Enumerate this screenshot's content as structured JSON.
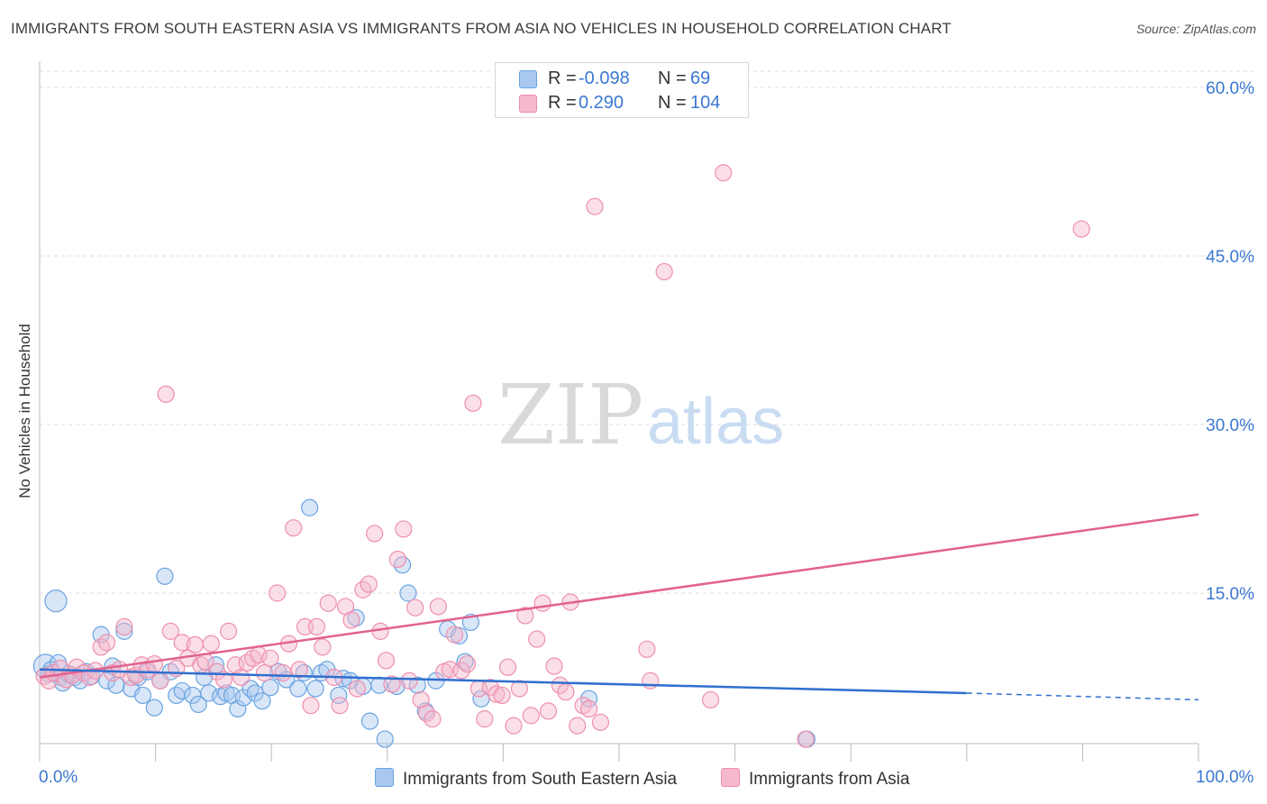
{
  "title": "IMMIGRANTS FROM SOUTH EASTERN ASIA VS IMMIGRANTS FROM ASIA NO VEHICLES IN HOUSEHOLD CORRELATION CHART",
  "source": "Source: ZipAtlas.com",
  "watermark": {
    "zip": "ZIP",
    "atlas": "atlas"
  },
  "legend": {
    "rows": [
      {
        "r_label": "R =",
        "r_value": "-0.098",
        "n_label": "N =",
        "n_value": "69",
        "color": "#a8c8f0"
      },
      {
        "r_label": "R =",
        "r_value": "0.290",
        "n_label": "N =",
        "n_value": "104",
        "color": "#f5b8cc"
      }
    ]
  },
  "bottom_legend": [
    {
      "label": "Immigrants from South Eastern Asia",
      "color": "#a8c8f0"
    },
    {
      "label": "Immigrants from Asia",
      "color": "#f5b8cc"
    }
  ],
  "chart_data": {
    "type": "scatter",
    "title": "IMMIGRANTS FROM SOUTH EASTERN ASIA VS IMMIGRANTS FROM ASIA NO VEHICLES IN HOUSEHOLD CORRELATION CHART",
    "xlabel": "",
    "ylabel": "No Vehicles in Household",
    "xlim": [
      0,
      100
    ],
    "ylim": [
      0,
      63
    ],
    "x_tick_labels": [
      "0.0%",
      "100.0%"
    ],
    "y_ticks": [
      15,
      30,
      45,
      60
    ],
    "y_tick_labels": [
      "15.0%",
      "30.0%",
      "45.0%",
      "60.0%"
    ],
    "grid": true,
    "colors": {
      "series1": "#6aa3e0",
      "series1_line": "#2f6fcf",
      "series2": "#ee8fad",
      "series2_line": "#e2628f",
      "accent_text": "#3a78d1"
    },
    "series": [
      {
        "name": "Immigrants from South Eastern Asia",
        "points": [
          [
            0.5,
            8.5
          ],
          [
            0.8,
            7.8
          ],
          [
            1.0,
            8.2
          ],
          [
            1.4,
            14.3
          ],
          [
            1.6,
            8.8
          ],
          [
            1.8,
            7.5
          ],
          [
            2.0,
            7.0
          ],
          [
            2.5,
            7.8
          ],
          [
            3.0,
            7.5
          ],
          [
            3.5,
            7.2
          ],
          [
            4.0,
            8.0
          ],
          [
            4.5,
            7.6
          ],
          [
            5.3,
            11.3
          ],
          [
            5.8,
            7.2
          ],
          [
            6.3,
            8.5
          ],
          [
            6.6,
            6.8
          ],
          [
            7.3,
            11.6
          ],
          [
            7.9,
            6.5
          ],
          [
            8.5,
            7.5
          ],
          [
            8.9,
            5.9
          ],
          [
            9.3,
            8.0
          ],
          [
            9.9,
            4.8
          ],
          [
            10.4,
            7.2
          ],
          [
            10.8,
            16.5
          ],
          [
            11.3,
            8.0
          ],
          [
            11.8,
            5.9
          ],
          [
            12.3,
            6.3
          ],
          [
            13.2,
            5.9
          ],
          [
            13.7,
            5.1
          ],
          [
            14.2,
            7.5
          ],
          [
            14.6,
            6.1
          ],
          [
            15.2,
            8.6
          ],
          [
            15.6,
            5.8
          ],
          [
            16.1,
            6.1
          ],
          [
            16.6,
            5.9
          ],
          [
            17.1,
            4.7
          ],
          [
            17.6,
            5.7
          ],
          [
            18.2,
            6.5
          ],
          [
            18.6,
            6.1
          ],
          [
            19.2,
            5.4
          ],
          [
            19.9,
            6.6
          ],
          [
            20.6,
            8.0
          ],
          [
            21.3,
            7.3
          ],
          [
            22.3,
            6.5
          ],
          [
            22.8,
            7.9
          ],
          [
            23.3,
            22.6
          ],
          [
            23.8,
            6.5
          ],
          [
            24.3,
            7.9
          ],
          [
            24.8,
            8.2
          ],
          [
            25.8,
            5.9
          ],
          [
            26.2,
            7.4
          ],
          [
            26.8,
            7.2
          ],
          [
            27.3,
            12.8
          ],
          [
            27.9,
            6.7
          ],
          [
            28.5,
            3.6
          ],
          [
            29.3,
            6.8
          ],
          [
            29.8,
            2.0
          ],
          [
            30.8,
            6.7
          ],
          [
            31.3,
            17.5
          ],
          [
            31.8,
            15.0
          ],
          [
            32.6,
            6.8
          ],
          [
            33.3,
            4.5
          ],
          [
            34.2,
            7.2
          ],
          [
            35.2,
            11.8
          ],
          [
            36.2,
            11.2
          ],
          [
            36.7,
            8.9
          ],
          [
            37.2,
            12.4
          ],
          [
            38.1,
            5.6
          ],
          [
            47.4,
            5.6
          ],
          [
            66.2,
            2.0
          ]
        ],
        "trend": {
          "x": [
            0,
            80
          ],
          "y": [
            8.2,
            6.1
          ]
        },
        "trend_dashed": {
          "x": [
            80,
            100
          ],
          "y": [
            6.1,
            5.5
          ]
        }
      },
      {
        "name": "Immigrants from Asia",
        "points": [
          [
            0.4,
            7.6
          ],
          [
            0.8,
            7.2
          ],
          [
            1.2,
            7.9
          ],
          [
            1.8,
            8.3
          ],
          [
            2.3,
            7.3
          ],
          [
            2.8,
            7.7
          ],
          [
            3.2,
            8.4
          ],
          [
            3.8,
            7.9
          ],
          [
            4.3,
            7.5
          ],
          [
            4.8,
            8.1
          ],
          [
            5.3,
            10.2
          ],
          [
            5.8,
            10.6
          ],
          [
            6.3,
            7.9
          ],
          [
            6.9,
            8.2
          ],
          [
            7.3,
            12.0
          ],
          [
            7.9,
            7.5
          ],
          [
            8.3,
            7.7
          ],
          [
            8.8,
            8.6
          ],
          [
            9.3,
            8.2
          ],
          [
            9.9,
            8.7
          ],
          [
            10.4,
            7.2
          ],
          [
            10.9,
            32.7
          ],
          [
            11.3,
            11.6
          ],
          [
            11.8,
            8.3
          ],
          [
            12.3,
            10.6
          ],
          [
            12.8,
            9.2
          ],
          [
            13.4,
            10.4
          ],
          [
            13.9,
            8.6
          ],
          [
            14.3,
            8.9
          ],
          [
            14.8,
            10.5
          ],
          [
            15.3,
            8.0
          ],
          [
            15.9,
            7.3
          ],
          [
            16.3,
            11.6
          ],
          [
            16.9,
            8.6
          ],
          [
            17.4,
            7.5
          ],
          [
            17.9,
            8.8
          ],
          [
            18.4,
            9.2
          ],
          [
            18.9,
            9.5
          ],
          [
            19.4,
            7.9
          ],
          [
            19.9,
            9.2
          ],
          [
            20.5,
            15.0
          ],
          [
            21.0,
            7.9
          ],
          [
            21.5,
            10.5
          ],
          [
            21.9,
            20.8
          ],
          [
            22.4,
            8.2
          ],
          [
            22.9,
            12.0
          ],
          [
            23.4,
            5.0
          ],
          [
            23.9,
            12.0
          ],
          [
            24.4,
            10.2
          ],
          [
            24.9,
            14.1
          ],
          [
            25.4,
            7.5
          ],
          [
            25.9,
            5.0
          ],
          [
            26.4,
            13.8
          ],
          [
            26.9,
            12.6
          ],
          [
            27.4,
            6.5
          ],
          [
            27.9,
            15.3
          ],
          [
            28.4,
            15.8
          ],
          [
            28.9,
            20.3
          ],
          [
            29.4,
            11.6
          ],
          [
            29.9,
            9.0
          ],
          [
            30.4,
            6.9
          ],
          [
            30.9,
            18.0
          ],
          [
            31.4,
            20.7
          ],
          [
            31.9,
            7.2
          ],
          [
            32.4,
            13.7
          ],
          [
            32.9,
            5.5
          ],
          [
            33.4,
            4.3
          ],
          [
            33.9,
            3.8
          ],
          [
            34.4,
            13.8
          ],
          [
            34.9,
            8.0
          ],
          [
            35.4,
            8.2
          ],
          [
            35.8,
            11.3
          ],
          [
            36.4,
            8.1
          ],
          [
            36.9,
            8.7
          ],
          [
            37.4,
            31.9
          ],
          [
            37.9,
            6.5
          ],
          [
            38.4,
            3.8
          ],
          [
            38.9,
            6.6
          ],
          [
            39.4,
            6.0
          ],
          [
            39.9,
            5.9
          ],
          [
            40.4,
            8.4
          ],
          [
            40.9,
            3.2
          ],
          [
            41.4,
            6.5
          ],
          [
            41.9,
            13.0
          ],
          [
            42.4,
            4.1
          ],
          [
            42.9,
            10.9
          ],
          [
            43.4,
            14.1
          ],
          [
            43.9,
            4.5
          ],
          [
            44.4,
            8.5
          ],
          [
            44.9,
            6.8
          ],
          [
            45.4,
            6.2
          ],
          [
            45.8,
            14.2
          ],
          [
            46.4,
            3.2
          ],
          [
            46.9,
            5.0
          ],
          [
            47.4,
            4.7
          ],
          [
            47.9,
            49.4
          ],
          [
            48.4,
            3.5
          ],
          [
            52.4,
            10.0
          ],
          [
            52.7,
            7.2
          ],
          [
            53.9,
            43.6
          ],
          [
            57.9,
            5.5
          ],
          [
            59.0,
            52.4
          ],
          [
            89.9,
            47.4
          ],
          [
            66.1,
            2.0
          ]
        ],
        "trend": {
          "x": [
            0,
            100
          ],
          "y": [
            7.5,
            22.0
          ]
        }
      }
    ]
  }
}
